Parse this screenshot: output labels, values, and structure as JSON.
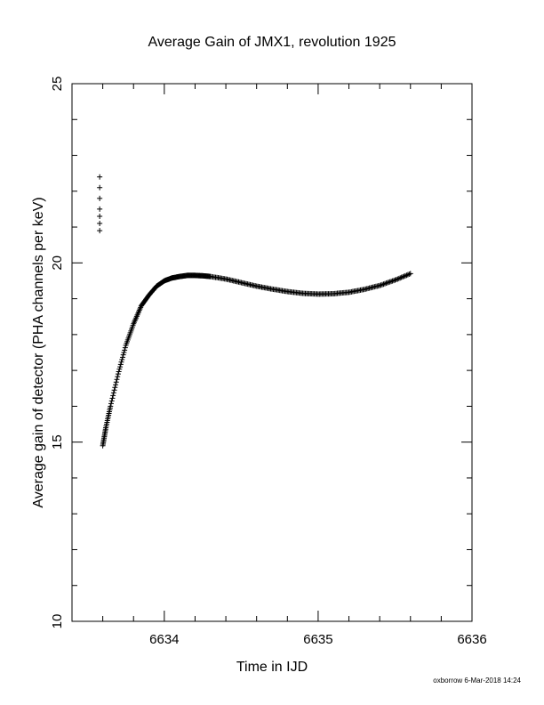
{
  "chart_data": {
    "type": "scatter",
    "title": "Average Gain of JMX1, revolution 1925",
    "xlabel": "Time in IJD",
    "ylabel": "Average gain of detector (PHA channels per keV)",
    "xlim": [
      6633.4,
      6636.0
    ],
    "ylim": [
      10,
      25
    ],
    "x_ticks": [
      6634,
      6635,
      6636
    ],
    "y_ticks": [
      10,
      15,
      20,
      25
    ],
    "marker": "plus",
    "grid": false,
    "series": [
      {
        "points_x": [
          6633.58,
          6633.58,
          6633.58,
          6633.58,
          6633.58,
          6633.58,
          6633.58
        ],
        "points_y": [
          20.9,
          21.1,
          21.3,
          21.5,
          21.8,
          22.1,
          22.4
        ]
      },
      {
        "points_x": [
          6633.6,
          6633.62,
          6633.65,
          6633.7,
          6633.75,
          6633.8,
          6633.85,
          6633.9,
          6633.95,
          6634.0,
          6634.05,
          6634.1,
          6634.15,
          6634.2,
          6634.25,
          6634.3,
          6634.4,
          6634.5,
          6634.6,
          6634.7,
          6634.8,
          6634.9,
          6635.0,
          6635.1,
          6635.2,
          6635.3,
          6635.4,
          6635.5,
          6635.6
        ],
        "points_y": [
          14.9,
          15.4,
          16.0,
          16.9,
          17.7,
          18.3,
          18.8,
          19.1,
          19.35,
          19.5,
          19.58,
          19.62,
          19.65,
          19.65,
          19.64,
          19.62,
          19.55,
          19.45,
          19.35,
          19.27,
          19.2,
          19.15,
          19.13,
          19.14,
          19.18,
          19.26,
          19.37,
          19.52,
          19.7
        ]
      }
    ]
  },
  "footer": {
    "credit": "oxborrow  6-Mar-2018 14:24"
  }
}
